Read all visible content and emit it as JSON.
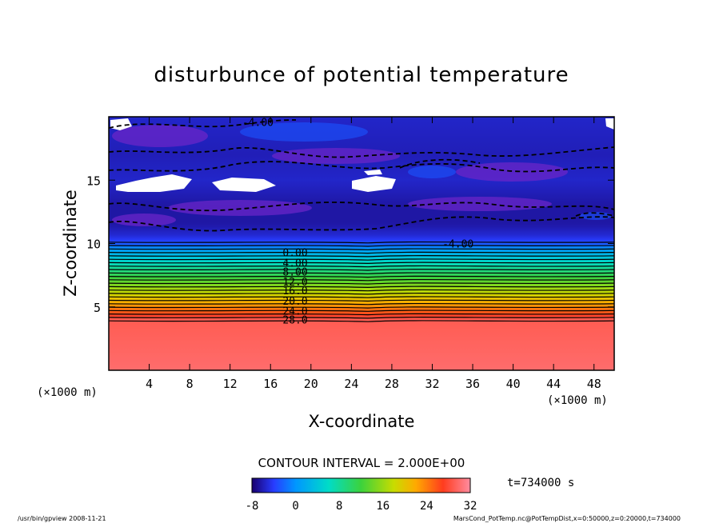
{
  "chart_data": {
    "type": "heatmap",
    "title": "disturbunce of potential temperature",
    "xlabel": "X-coordinate",
    "ylabel": "Z-coordinate",
    "x_unit_left": "(×1000 m)",
    "x_unit_right": "(×1000 m)",
    "xlim": [
      0,
      50
    ],
    "ylim": [
      0,
      20
    ],
    "xticks": [
      "4",
      "8",
      "12",
      "16",
      "20",
      "24",
      "28",
      "32",
      "36",
      "40",
      "44",
      "48"
    ],
    "yticks": [
      "5",
      "10",
      "15"
    ],
    "contour_interval_text": "CONTOUR INTERVAL = 2.000E+00",
    "contour_labels": [
      {
        "text": "-4.00",
        "x": 13.2,
        "z": 19.6
      },
      {
        "text": "-4.00",
        "x": 33.0,
        "z": 10.0
      },
      {
        "text": "0.00",
        "x": 17.2,
        "z": 9.3
      },
      {
        "text": "4.00",
        "x": 17.2,
        "z": 8.5
      },
      {
        "text": "8.00",
        "x": 17.2,
        "z": 7.8
      },
      {
        "text": "12.0",
        "x": 17.2,
        "z": 7.0
      },
      {
        "text": "16.0",
        "x": 17.2,
        "z": 6.3
      },
      {
        "text": "20.0",
        "x": 17.2,
        "z": 5.5
      },
      {
        "text": "24.0",
        "x": 17.2,
        "z": 4.7
      },
      {
        "text": "28.0",
        "x": 17.2,
        "z": 4.0
      }
    ],
    "colorbar": {
      "min": -8,
      "max": 32,
      "ticks": [
        "-8",
        "0",
        "8",
        "16",
        "24",
        "32"
      ]
    },
    "time_label": "t=734000 s",
    "profile": {
      "z": [
        0,
        4,
        4.4,
        4.8,
        5.3,
        5.8,
        6.3,
        6.8,
        7.3,
        7.8,
        8.3,
        8.8,
        9.3,
        9.6,
        9.9,
        10.5,
        11.5,
        13,
        15,
        17,
        20
      ],
      "theta": [
        30,
        29,
        27,
        24.5,
        22,
        19.5,
        17,
        14.5,
        12,
        9.5,
        7,
        4.5,
        2,
        0,
        -2.5,
        -5,
        -6.5,
        -6.5,
        -5.5,
        -6,
        -5.5
      ]
    }
  },
  "footer": {
    "left": "/usr/bin/gpview   2008-11-21",
    "right": "MarsCond_PotTemp.nc@PotTempDist,x=0:50000,z=0:20000,t=734000"
  }
}
